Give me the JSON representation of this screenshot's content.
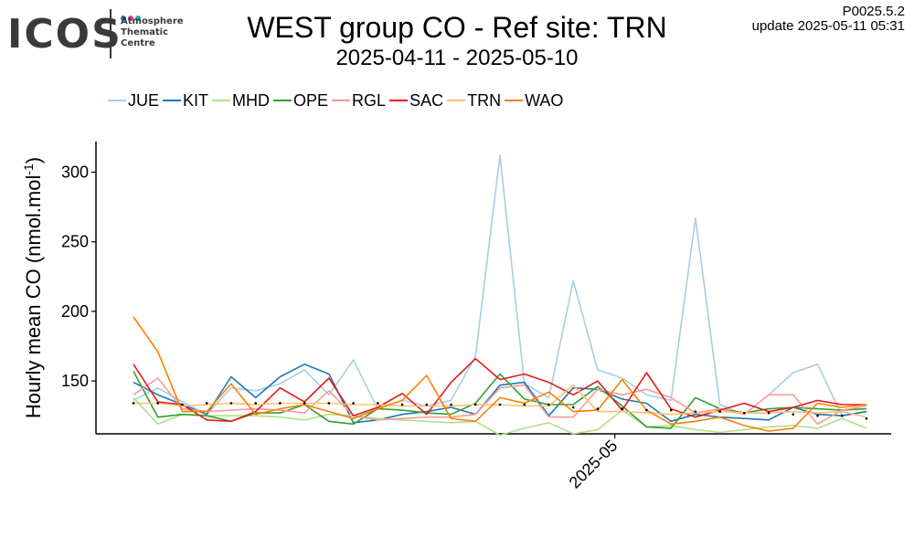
{
  "logo": {
    "wordmark": "ICOS",
    "subtext": [
      "Atmosphere",
      "Thematic",
      "Centre"
    ],
    "dot_colors": [
      "#2b6cb0",
      "#e83e8c",
      "#1aa3c7"
    ]
  },
  "header": {
    "version": "P0025.5.2",
    "update": "update  2025-05-11 05:31"
  },
  "chart_data": {
    "type": "line",
    "title": "WEST group CO - Ref site: TRN",
    "subtitle": "2025-04-11 - 2025-05-10",
    "ylabel": "Hourly mean  CO (nmol.mol",
    "ylabel_superscript": "-1",
    "ylabel_close": ")",
    "xlim": [
      0,
      30
    ],
    "ylim": [
      112,
      322
    ],
    "y_ticks": [
      150,
      200,
      250,
      300
    ],
    "x_ticks": [
      {
        "x": 19.7,
        "label": "2025-05"
      }
    ],
    "legend_position": "top-left",
    "grid": false,
    "x": [
      0,
      1,
      2,
      3,
      4,
      5,
      6,
      7,
      8,
      9,
      10,
      11,
      12,
      13,
      14,
      15,
      16,
      17,
      18,
      19,
      20,
      21,
      22,
      23,
      24,
      25,
      26,
      27,
      28,
      29,
      30
    ],
    "series": [
      {
        "name": "JUE",
        "color": "#a6cee3",
        "values": [
          136,
          145,
          135,
          126,
          145,
          143,
          148,
          158,
          140,
          165,
          130,
          136,
          132,
          136,
          168,
          312,
          148,
          138,
          222,
          158,
          152,
          140,
          136,
          267,
          133,
          126,
          140,
          156,
          162,
          125,
          128
        ]
      },
      {
        "name": "KIT",
        "color": "#1f78b4",
        "values": [
          149,
          140,
          133,
          126,
          153,
          138,
          153,
          162,
          155,
          120,
          122,
          126,
          128,
          131,
          126,
          147,
          149,
          125,
          145,
          144,
          137,
          134,
          121,
          126,
          124,
          123,
          122,
          131,
          126,
          125,
          128
        ]
      },
      {
        "name": "MHD",
        "color": "#b2df8a",
        "values": [
          138,
          119,
          126,
          125,
          125,
          125,
          124,
          122,
          126,
          125,
          123,
          122,
          121,
          120,
          121,
          111,
          116,
          120,
          112,
          115,
          129,
          117,
          118,
          115,
          113,
          115,
          117,
          118,
          116,
          123,
          116
        ]
      },
      {
        "name": "OPE",
        "color": "#33a02c",
        "values": [
          157,
          124,
          126,
          125,
          121,
          127,
          127,
          133,
          121,
          119,
          130,
          129,
          127,
          126,
          134,
          155,
          137,
          133,
          133,
          146,
          132,
          117,
          116,
          138,
          130,
          127,
          130,
          131,
          130,
          129,
          130
        ]
      },
      {
        "name": "RGL",
        "color": "#fb9a99",
        "values": [
          140,
          152,
          130,
          128,
          129,
          130,
          129,
          127,
          143,
          125,
          122,
          123,
          124,
          124,
          126,
          145,
          147,
          124,
          124,
          144,
          140,
          144,
          138,
          127,
          130,
          126,
          140,
          140,
          119,
          129,
          132
        ]
      },
      {
        "name": "SAC",
        "color": "#e31a1c",
        "values": [
          162,
          135,
          133,
          122,
          121,
          128,
          145,
          135,
          152,
          125,
          131,
          141,
          126,
          149,
          166,
          151,
          155,
          149,
          140,
          150,
          129,
          156,
          130,
          124,
          129,
          134,
          128,
          131,
          136,
          133,
          133
        ]
      },
      {
        "name": "TRN",
        "color": "#fdbf6f",
        "values": [
          134,
          134,
          132,
          133,
          134,
          133,
          134,
          134,
          134,
          133,
          133,
          132,
          132,
          132,
          133,
          133,
          132,
          132,
          147,
          128,
          128,
          127,
          126,
          127,
          128,
          127,
          127,
          128,
          127,
          128,
          124
        ]
      },
      {
        "name": "WAO",
        "color": "#ff7f00",
        "values": [
          196,
          171,
          128,
          128,
          148,
          126,
          130,
          133,
          128,
          123,
          130,
          136,
          154,
          123,
          121,
          138,
          134,
          142,
          128,
          129,
          151,
          129,
          119,
          121,
          124,
          118,
          114,
          116,
          134,
          131,
          133
        ]
      }
    ],
    "ref_points": [
      {
        "x": 0,
        "y": 134
      },
      {
        "x": 1,
        "y": 134
      },
      {
        "x": 2,
        "y": 133
      },
      {
        "x": 3,
        "y": 134
      },
      {
        "x": 4,
        "y": 134
      },
      {
        "x": 5,
        "y": 134
      },
      {
        "x": 6,
        "y": 134
      },
      {
        "x": 7,
        "y": 134
      },
      {
        "x": 8,
        "y": 134
      },
      {
        "x": 9,
        "y": 134
      },
      {
        "x": 10,
        "y": 134
      },
      {
        "x": 11,
        "y": 133
      },
      {
        "x": 12,
        "y": 133
      },
      {
        "x": 13,
        "y": 133
      },
      {
        "x": 14,
        "y": 133
      },
      {
        "x": 15,
        "y": 133
      },
      {
        "x": 16,
        "y": 133
      },
      {
        "x": 17,
        "y": 133
      },
      {
        "x": 18,
        "y": 131
      },
      {
        "x": 19,
        "y": 130
      },
      {
        "x": 20,
        "y": 130
      },
      {
        "x": 21,
        "y": 129
      },
      {
        "x": 22,
        "y": 129
      },
      {
        "x": 23,
        "y": 128
      },
      {
        "x": 24,
        "y": 128
      },
      {
        "x": 25,
        "y": 127
      },
      {
        "x": 26,
        "y": 127
      },
      {
        "x": 27,
        "y": 126
      },
      {
        "x": 28,
        "y": 125
      },
      {
        "x": 29,
        "y": 125
      },
      {
        "x": 30,
        "y": 123
      }
    ]
  }
}
